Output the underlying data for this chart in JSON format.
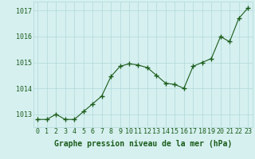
{
  "x": [
    0,
    1,
    2,
    3,
    4,
    5,
    6,
    7,
    8,
    9,
    10,
    11,
    12,
    13,
    14,
    15,
    16,
    17,
    18,
    19,
    20,
    21,
    22,
    23
  ],
  "y": [
    1012.8,
    1012.8,
    1013.0,
    1012.8,
    1012.8,
    1013.1,
    1013.4,
    1013.7,
    1014.45,
    1014.85,
    1014.95,
    1014.9,
    1014.8,
    1014.5,
    1014.2,
    1014.15,
    1014.0,
    1014.85,
    1015.0,
    1015.15,
    1016.0,
    1015.8,
    1016.7,
    1017.1
  ],
  "ylim": [
    1012.5,
    1017.35
  ],
  "yticks": [
    1013,
    1014,
    1015,
    1016,
    1017
  ],
  "xticks": [
    0,
    1,
    2,
    3,
    4,
    5,
    6,
    7,
    8,
    9,
    10,
    11,
    12,
    13,
    14,
    15,
    16,
    17,
    18,
    19,
    20,
    21,
    22,
    23
  ],
  "line_color": "#1a5c1a",
  "marker_color": "#1a5c1a",
  "bg_color": "#d6f0f0",
  "grid_color": "#b0d8d8",
  "xlabel": "Graphe pression niveau de la mer (hPa)",
  "xlabel_color": "#1a5c1a",
  "tick_color": "#1a5c1a",
  "axis_label_fontsize": 7,
  "tick_fontsize": 6
}
